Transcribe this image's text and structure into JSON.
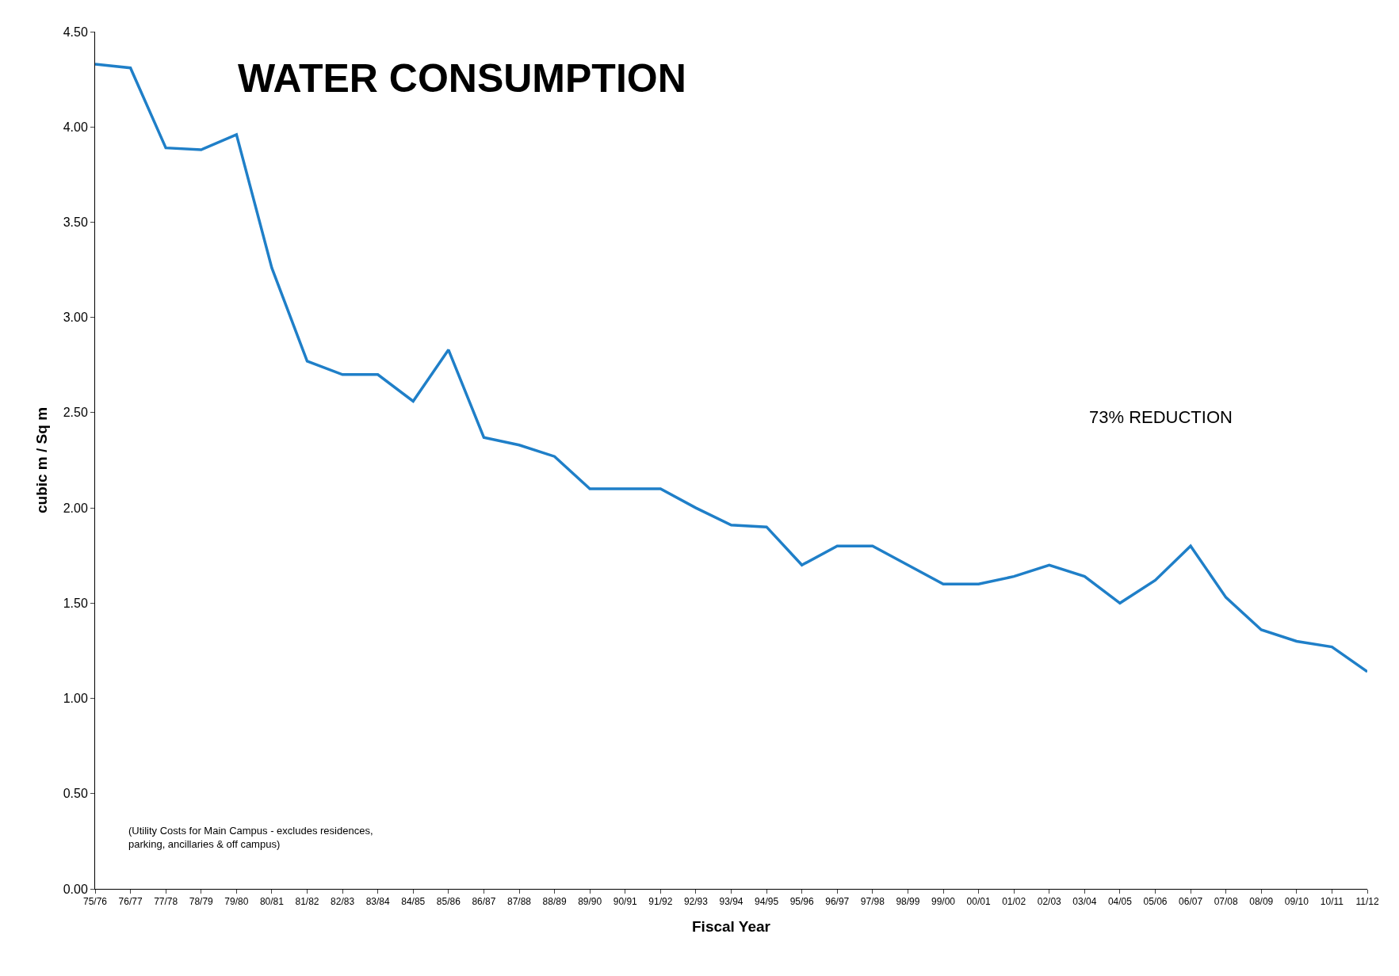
{
  "chart_data": {
    "type": "line",
    "title": "WATER CONSUMPTION",
    "xlabel": "Fiscal Year",
    "ylabel": "cubic m / Sq m",
    "categories": [
      "75/76",
      "76/77",
      "77/78",
      "78/79",
      "79/80",
      "80/81",
      "81/82",
      "82/83",
      "83/84",
      "84/85",
      "85/86",
      "86/87",
      "87/88",
      "88/89",
      "89/90",
      "90/91",
      "91/92",
      "92/93",
      "93/94",
      "94/95",
      "95/96",
      "96/97",
      "97/98",
      "98/99",
      "99/00",
      "00/01",
      "01/02",
      "02/03",
      "03/04",
      "04/05",
      "05/06",
      "06/07",
      "07/08",
      "08/09",
      "09/10",
      "10/11",
      "11/12"
    ],
    "series": [
      {
        "color": "#1f7fc8",
        "values": [
          4.33,
          4.31,
          3.89,
          3.88,
          3.96,
          3.26,
          2.77,
          2.7,
          2.7,
          2.56,
          2.83,
          2.37,
          2.33,
          2.27,
          2.1,
          2.1,
          2.1,
          2.0,
          1.91,
          1.9,
          1.7,
          1.8,
          1.8,
          1.7,
          1.6,
          1.6,
          1.64,
          1.7,
          1.64,
          1.5,
          1.62,
          1.8,
          1.53,
          1.36,
          1.3,
          1.27,
          1.14
        ]
      }
    ],
    "ylim": [
      0,
      4.5
    ],
    "yticks": [
      {
        "value": 0,
        "label": "0.00"
      },
      {
        "value": 0.5,
        "label": "0.50"
      },
      {
        "value": 1,
        "label": "1.00"
      },
      {
        "value": 1.5,
        "label": "1.50"
      },
      {
        "value": 2,
        "label": "2.00"
      },
      {
        "value": 2.5,
        "label": "2.50"
      },
      {
        "value": 3,
        "label": "3.00"
      },
      {
        "value": 3.5,
        "label": "3.50"
      },
      {
        "value": 4,
        "label": "4.00"
      },
      {
        "value": 4.5,
        "label": "4.50"
      }
    ],
    "annotations": [
      "73% REDUCTION",
      "(Utility Costs for Main Campus - excludes residences,\nparking, ancillaries & off campus)"
    ],
    "marker": "none",
    "line_style": "solid"
  }
}
